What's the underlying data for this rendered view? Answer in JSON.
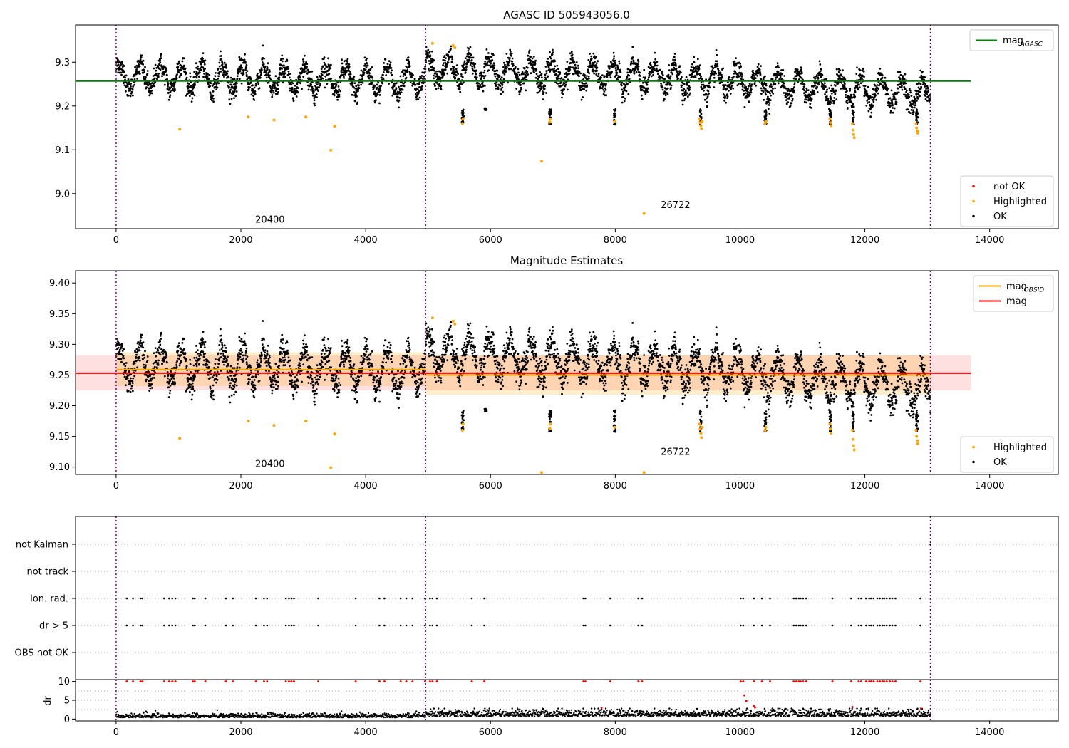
{
  "chart_data": [
    {
      "type": "scatter",
      "title": "AGASC ID 505943056.0",
      "xlabel": "",
      "ylabel": "",
      "xlim": [
        -650,
        15100
      ],
      "ylim": [
        8.92,
        9.385
      ],
      "xticks": [
        0,
        2000,
        4000,
        6000,
        8000,
        10000,
        12000,
        14000
      ],
      "yticks": [
        9.0,
        9.1,
        9.2,
        9.3
      ],
      "ytick_labels": [
        "9.0",
        "9.1",
        "9.2",
        "9.3"
      ],
      "obsid_boundaries": [
        0,
        4960,
        13050
      ],
      "annotations": [
        {
          "text": "20400",
          "x": 2230,
          "y": 8.934
        },
        {
          "text": "26722",
          "x": 8730,
          "y": 8.967
        }
      ],
      "lines": [
        {
          "name": "mag",
          "name_sub": "AGASC",
          "y": 9.257,
          "x_range": [
            -650,
            13700
          ],
          "color": "#008000"
        }
      ],
      "legend_upper": [
        {
          "label": "mag",
          "sub": "AGASC",
          "kind": "line",
          "color": "#008000"
        }
      ],
      "legend_lower": [
        {
          "label": "not OK",
          "kind": "marker",
          "color": "#ff0000"
        },
        {
          "label": "Highlighted",
          "kind": "marker",
          "color": "#ffa500"
        },
        {
          "label": "OK",
          "kind": "marker",
          "color": "#000000"
        }
      ],
      "series": [
        {
          "name": "OK",
          "color": "#000000",
          "description": "dense time series of roughly 13000 samples oscillating between 9.21 and 9.33, mean near 9.26, slight downward trend after x=9000"
        },
        {
          "name": "Highlighted",
          "color": "#ffa500",
          "points": [
            [
              1020,
              9.147
            ],
            [
              2120,
              9.175
            ],
            [
              2530,
              9.168
            ],
            [
              3040,
              9.175
            ],
            [
              3440,
              9.099
            ],
            [
              3500,
              9.154
            ],
            [
              5070,
              9.343
            ],
            [
              5400,
              9.338
            ],
            [
              5430,
              9.333
            ],
            [
              5550,
              9.16
            ],
            [
              5560,
              9.17
            ],
            [
              6820,
              9.074
            ],
            [
              6950,
              9.163
            ],
            [
              6960,
              9.17
            ],
            [
              7990,
              9.165
            ],
            [
              8460,
              8.955
            ],
            [
              9350,
              9.17
            ],
            [
              9360,
              9.162
            ],
            [
              9370,
              9.155
            ],
            [
              9380,
              9.148
            ],
            [
              9390,
              9.165
            ],
            [
              10400,
              9.16
            ],
            [
              10410,
              9.165
            ],
            [
              11440,
              9.17
            ],
            [
              11450,
              9.162
            ],
            [
              11460,
              9.155
            ],
            [
              11800,
              9.16
            ],
            [
              11810,
              9.145
            ],
            [
              11820,
              9.135
            ],
            [
              11830,
              9.128
            ],
            [
              12820,
              9.16
            ],
            [
              12830,
              9.15
            ],
            [
              12840,
              9.143
            ],
            [
              12850,
              9.138
            ]
          ]
        }
      ]
    },
    {
      "type": "scatter",
      "title": "Magnitude Estimates",
      "xlabel": "",
      "ylabel": "",
      "xlim": [
        -650,
        15100
      ],
      "ylim": [
        9.088,
        9.42
      ],
      "xticks": [
        0,
        2000,
        4000,
        6000,
        8000,
        10000,
        12000,
        14000
      ],
      "yticks": [
        9.1,
        9.15,
        9.2,
        9.25,
        9.3,
        9.35,
        9.4
      ],
      "ytick_labels": [
        "9.10",
        "9.15",
        "9.20",
        "9.25",
        "9.30",
        "9.35",
        "9.40"
      ],
      "obsid_boundaries": [
        0,
        4960,
        13050
      ],
      "annotations": [
        {
          "text": "20400",
          "x": 2230,
          "y": 9.1
        },
        {
          "text": "26722",
          "x": 8730,
          "y": 9.12
        }
      ],
      "bands": [
        {
          "y_range": [
            9.225,
            9.282
          ],
          "x_range": [
            -650,
            13700
          ],
          "color": "#ff0000",
          "opacity": 0.12
        },
        {
          "y_range": [
            9.232,
            9.287
          ],
          "x_range": [
            0,
            4960
          ],
          "color": "#ffa500",
          "opacity": 0.2
        },
        {
          "y_range": [
            9.218,
            9.282
          ],
          "x_range": [
            4960,
            13050
          ],
          "color": "#ffa500",
          "opacity": 0.2
        }
      ],
      "lines": [
        {
          "name": "mag",
          "name_sub": "OBSID",
          "segments": [
            {
              "x_range": [
                0,
                4960
              ],
              "y": 9.259
            },
            {
              "x_range": [
                4960,
                13050
              ],
              "y": 9.25
            }
          ],
          "color": "#ffa500"
        },
        {
          "name": "mag",
          "y": 9.253,
          "x_range": [
            -650,
            13700
          ],
          "color": "#ff0000"
        }
      ],
      "legend_upper": [
        {
          "label": "mag",
          "sub": "OBSID",
          "kind": "line",
          "color": "#ffa500"
        },
        {
          "label": "mag",
          "kind": "line",
          "color": "#ff0000"
        }
      ],
      "legend_lower": [
        {
          "label": "Highlighted",
          "kind": "marker",
          "color": "#ffa500"
        },
        {
          "label": "OK",
          "kind": "marker",
          "color": "#000000"
        }
      ],
      "series": [
        {
          "name": "OK",
          "color": "#000000",
          "description": "same time series as top panel"
        },
        {
          "name": "Highlighted",
          "color": "#ffa500",
          "points": [
            [
              1020,
              9.147
            ],
            [
              2120,
              9.175
            ],
            [
              2530,
              9.168
            ],
            [
              3040,
              9.175
            ],
            [
              3440,
              9.099
            ],
            [
              3500,
              9.154
            ],
            [
              5070,
              9.343
            ],
            [
              5400,
              9.338
            ],
            [
              5430,
              9.333
            ],
            [
              5550,
              9.16
            ],
            [
              5560,
              9.17
            ],
            [
              6820,
              9.091
            ],
            [
              6950,
              9.163
            ],
            [
              6960,
              9.17
            ],
            [
              7990,
              9.165
            ],
            [
              8460,
              9.091
            ],
            [
              9350,
              9.17
            ],
            [
              9360,
              9.162
            ],
            [
              9370,
              9.155
            ],
            [
              9380,
              9.148
            ],
            [
              9390,
              9.165
            ],
            [
              10400,
              9.16
            ],
            [
              10410,
              9.165
            ],
            [
              11440,
              9.17
            ],
            [
              11450,
              9.162
            ],
            [
              11460,
              9.155
            ],
            [
              11800,
              9.16
            ],
            [
              11810,
              9.145
            ],
            [
              11820,
              9.135
            ],
            [
              11830,
              9.128
            ],
            [
              12820,
              9.16
            ],
            [
              12830,
              9.15
            ],
            [
              12840,
              9.143
            ],
            [
              12850,
              9.138
            ]
          ]
        }
      ]
    },
    {
      "type": "scatter",
      "title": "",
      "xlabel": "",
      "ylabel": "",
      "xlim": [
        -650,
        15100
      ],
      "categories": [
        "not Kalman",
        "not track",
        "Ion. rad.",
        "dr > 5",
        "OBS not OK"
      ],
      "obsid_boundaries": [
        0,
        4960,
        13050
      ],
      "xticks": [],
      "flag_times": [
        170,
        270,
        390,
        420,
        770,
        850,
        900,
        950,
        1230,
        1260,
        1430,
        1760,
        1870,
        2240,
        2370,
        2420,
        2720,
        2770,
        2810,
        2850,
        3240,
        3840,
        4220,
        4300,
        4560,
        4650,
        4750,
        4950,
        5030,
        5070,
        5140,
        5700,
        5900,
        7490,
        7520,
        7920,
        8370,
        8430,
        10010,
        10050,
        10220,
        10350,
        10480,
        10860,
        10900,
        10940,
        10970,
        11010,
        11060,
        11480,
        11780,
        11900,
        11940,
        12020,
        12070,
        12100,
        12140,
        12200,
        12240,
        12280,
        12310,
        12350,
        12400,
        12440,
        12490,
        12890
      ],
      "not_kalman_times": [
        13050
      ],
      "series": [
        {
          "name": "Ion. rad.",
          "color": "#000000"
        },
        {
          "name": "dr > 5",
          "color": "#000000"
        }
      ]
    },
    {
      "type": "scatter",
      "title": "",
      "xlabel": "",
      "ylabel": "dr",
      "xlim": [
        -650,
        15100
      ],
      "ylim": [
        -0.5,
        10.5
      ],
      "xticks": [
        0,
        2000,
        4000,
        6000,
        8000,
        10000,
        12000,
        14000
      ],
      "yticks": [
        0,
        5,
        10
      ],
      "ytick_labels": [
        "0",
        "5",
        "10"
      ],
      "obsid_boundaries": [
        0,
        4960,
        13050
      ],
      "series": [
        {
          "name": "OK",
          "color": "#000000",
          "description": "dr values mostly between 0 and 2.5, growing slightly after x=5000"
        },
        {
          "name": "not OK",
          "color": "#ff0000",
          "description": "values clipped at 10 at the flagged times, plus scattered points near 2 to 6 after x=5000",
          "points": [
            [
              10070,
              6.3
            ],
            [
              10100,
              4.8
            ],
            [
              10220,
              3.5
            ],
            [
              10240,
              3.1
            ],
            [
              7780,
              3.0
            ],
            [
              11800,
              3.2
            ],
            [
              12900,
              2.8
            ]
          ]
        }
      ]
    }
  ]
}
